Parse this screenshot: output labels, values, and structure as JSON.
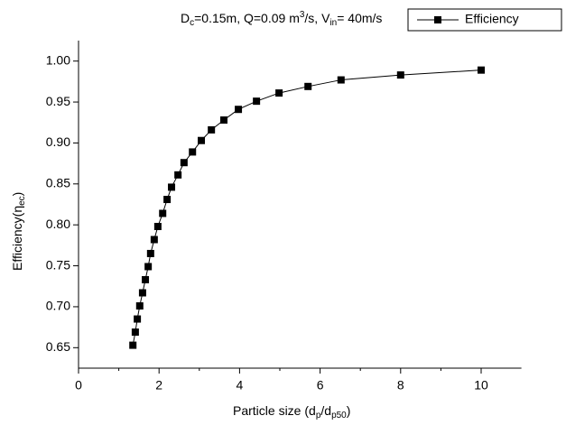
{
  "chart_data": {
    "type": "line",
    "title": [
      "D",
      "c",
      "=0.15m, Q=0.09 m",
      "3",
      "/s, V",
      "in",
      "= 40m/s"
    ],
    "x_label": [
      "Particle size (d",
      "p",
      "/d",
      "p50",
      ")"
    ],
    "y_label": [
      "Efficiency(η",
      "ec",
      ")"
    ],
    "series": [
      {
        "name": "Efficiency",
        "color": "#000000",
        "x": [
          1.35,
          1.41,
          1.46,
          1.52,
          1.59,
          1.66,
          1.73,
          1.79,
          1.88,
          1.97,
          2.09,
          2.2,
          2.31,
          2.47,
          2.62,
          2.83,
          3.05,
          3.3,
          3.61,
          3.97,
          4.42,
          4.98,
          5.7,
          6.52,
          8.0,
          10.0
        ],
        "values": [
          0.653,
          0.669,
          0.685,
          0.701,
          0.717,
          0.733,
          0.749,
          0.765,
          0.782,
          0.798,
          0.814,
          0.831,
          0.846,
          0.861,
          0.876,
          0.889,
          0.903,
          0.916,
          0.928,
          0.941,
          0.951,
          0.961,
          0.969,
          0.977,
          0.983,
          0.989
        ]
      }
    ],
    "xlim": [
      0,
      11
    ],
    "xticks": [
      0,
      2,
      4,
      6,
      8,
      10
    ],
    "ylim": [
      0.625,
      1.025
    ],
    "yticks": [
      0.65,
      {
        "value": 0.7,
        "label": "0.70"
      },
      0.75,
      {
        "value": 0.8,
        "label": "0.80"
      },
      0.85,
      {
        "value": 0.9,
        "label": "0.90"
      },
      0.95,
      {
        "value": 1.0,
        "label": "1.00"
      }
    ],
    "legend": "top-right",
    "grid": false
  }
}
